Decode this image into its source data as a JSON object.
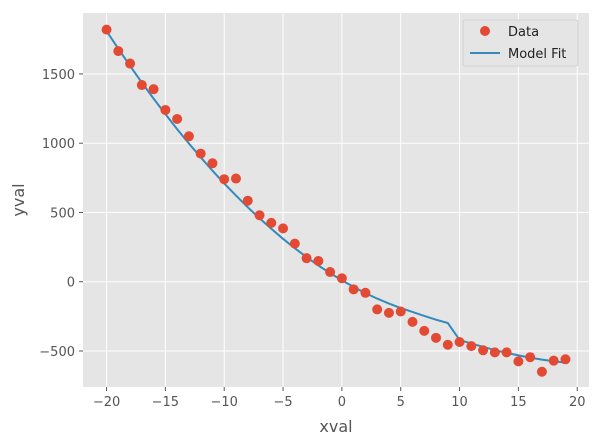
{
  "chart_data": {
    "type": "scatter",
    "title": "",
    "xlabel": "xval",
    "ylabel": "yval",
    "xlim": [
      -22,
      21
    ],
    "ylim": [
      -760,
      1940
    ],
    "xticks": [
      -20,
      -15,
      -10,
      -5,
      0,
      5,
      10,
      15,
      20
    ],
    "xtick_labels": [
      "−20",
      "−15",
      "−10",
      "−5",
      "0",
      "5",
      "10",
      "15",
      "20"
    ],
    "yticks": [
      -500,
      0,
      500,
      1000,
      1500
    ],
    "ytick_labels": [
      "−500",
      "0",
      "500",
      "1000",
      "1500"
    ],
    "grid": true,
    "legend_position": "top-right",
    "colors": {
      "data": "#E24A33",
      "fit": "#348ABD",
      "background": "#E5E5E5",
      "grid": "#FFFFFF"
    },
    "series": [
      {
        "name": "Data",
        "kind": "scatter",
        "x": [
          -20,
          -19,
          -18,
          -17,
          -16,
          -15,
          -14,
          -13,
          -12,
          -11,
          -10,
          -9,
          -8,
          -7,
          -6,
          -5,
          -4,
          -3,
          -2,
          -1,
          0,
          1,
          2,
          3,
          4,
          5,
          6,
          7,
          8,
          9,
          10,
          11,
          12,
          13,
          14,
          15,
          16,
          17,
          18,
          19
        ],
        "y": [
          1820,
          1665,
          1575,
          1420,
          1390,
          1240,
          1175,
          1050,
          925,
          855,
          740,
          745,
          585,
          480,
          425,
          385,
          275,
          170,
          150,
          70,
          25,
          -55,
          -80,
          -200,
          -225,
          -215,
          -290,
          -355,
          -405,
          -455,
          -435,
          -465,
          -495,
          -510,
          -510,
          -575,
          -545,
          -650,
          -570,
          -560
        ]
      },
      {
        "name": "Model Fit",
        "kind": "line",
        "x": [
          -20,
          -19,
          -18,
          -17,
          -16,
          -15,
          -14,
          -13,
          -12,
          -11,
          -10,
          -9,
          -8,
          -7,
          -6,
          -5,
          -4,
          -3,
          -2,
          -1,
          0,
          1,
          2,
          3,
          4,
          5,
          6,
          7,
          8,
          9,
          10,
          11,
          12,
          13,
          14,
          15,
          16,
          17,
          18,
          19
        ],
        "y": [
          1810,
          1682,
          1558,
          1438,
          1322,
          1210,
          1102,
          998,
          898,
          802,
          710,
          622,
          538,
          458,
          382,
          310,
          242,
          178,
          118,
          62,
          10,
          -38,
          -82,
          -122,
          -158,
          -190,
          -218,
          -247,
          -274,
          -298,
          -420,
          -447,
          -470,
          -494,
          -514,
          -532,
          -548,
          -562,
          -574,
          -584
        ]
      }
    ]
  }
}
